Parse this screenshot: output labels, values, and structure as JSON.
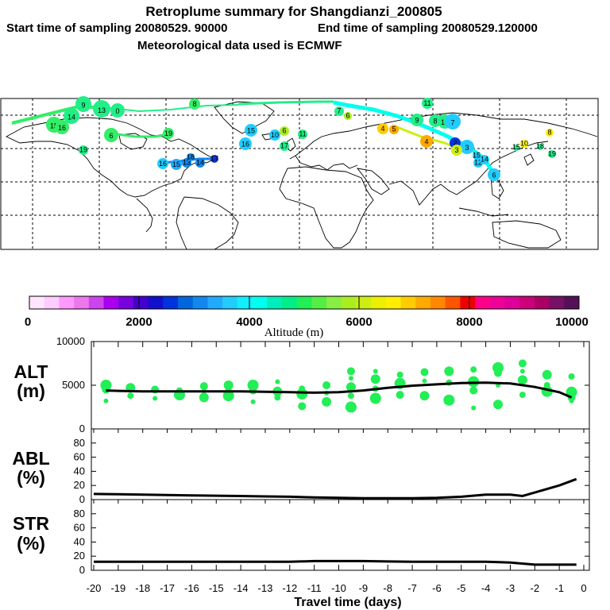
{
  "header": {
    "title": "Retroplume summary for Shangdianzi_200805",
    "line2_start": "Start time of sampling 20080529. 90000",
    "line2_end": "End time of sampling 20080529.120000",
    "line3": "Meteorological data used is ECMWF"
  },
  "colorbar": {
    "label": "Altitude (m)",
    "ticks": [
      "0",
      "2000",
      "4000",
      "6000",
      "8000",
      "10000"
    ],
    "colors": [
      "#ffe6ff",
      "#ffccff",
      "#ff99ff",
      "#ee77ee",
      "#cc44ee",
      "#aa00ee",
      "#7700dd",
      "#4400cc",
      "#1111cc",
      "#0033dd",
      "#0066dd",
      "#1188ee",
      "#22aaff",
      "#22ccff",
      "#11eeff",
      "#00ffee",
      "#00eebb",
      "#00ee88",
      "#22ee55",
      "#55ee44",
      "#88ee44",
      "#aaee22",
      "#ccee11",
      "#eeee00",
      "#ffee00",
      "#ffcc00",
      "#ffaa00",
      "#ff8800",
      "#ff5500",
      "#ee0000",
      "#ff0088",
      "#ee0099",
      "#dd0099",
      "#cc0077",
      "#aa0066",
      "#771166",
      "#551155"
    ]
  },
  "map": {
    "markers": [
      {
        "label": "9",
        "color": "#22ee88",
        "r": 10
      },
      {
        "label": "13",
        "color": "#22ee88",
        "r": 11
      },
      {
        "label": "0",
        "color": "#22ee88",
        "r": 9
      },
      {
        "label": "14",
        "color": "#22ee88",
        "r": 10
      },
      {
        "label": "15",
        "color": "#33ee66",
        "r": 10
      },
      {
        "label": "16",
        "color": "#33ee66",
        "r": 9
      },
      {
        "label": "8",
        "color": "#33ee66",
        "r": 7
      },
      {
        "label": "6",
        "color": "#33ee66",
        "r": 9
      },
      {
        "label": "19",
        "color": "#22ee88",
        "r": 6
      },
      {
        "label": "19",
        "color": "#33ee66",
        "r": 7
      },
      {
        "label": "16",
        "color": "#22ccff",
        "r": 7
      },
      {
        "label": "15",
        "color": "#22aaff",
        "r": 7
      },
      {
        "label": "13",
        "color": "#1188ee",
        "r": 6
      },
      {
        "label": "14",
        "color": "#1188ee",
        "r": 6
      },
      {
        "label": "17",
        "color": "#1133dd",
        "r": 5
      },
      {
        "label": "18",
        "color": "#1188ee",
        "r": 5
      },
      {
        "label": "15",
        "color": "#22ccff",
        "r": 8
      },
      {
        "label": "16",
        "color": "#22ccff",
        "r": 8
      },
      {
        "label": "10",
        "color": "#22ccff",
        "r": 7
      },
      {
        "label": "6",
        "color": "#aaee22",
        "r": 6
      },
      {
        "label": "17",
        "color": "#22ee88",
        "r": 6
      },
      {
        "label": "11",
        "color": "#22ee88",
        "r": 6
      },
      {
        "label": "4",
        "color": "#ffcc00",
        "r": 7
      },
      {
        "label": "5",
        "color": "#ffaa00",
        "r": 6
      },
      {
        "label": "7",
        "color": "#22ee88",
        "r": 6
      },
      {
        "label": "6",
        "color": "#aaee22",
        "r": 5
      },
      {
        "label": "11",
        "color": "#22ee88",
        "r": 7
      },
      {
        "label": "9",
        "color": "#22ee88",
        "r": 8
      },
      {
        "label": "8",
        "color": "#22ee88",
        "r": 8
      },
      {
        "label": "16",
        "color": "#22ee88",
        "r": 9
      },
      {
        "label": "7",
        "color": "#22ccff",
        "r": 10
      },
      {
        "label": "4",
        "color": "#ffaa00",
        "r": 8
      },
      {
        "label": "2",
        "color": "#0033dd",
        "r": 7
      },
      {
        "label": "3",
        "color": "#22ccff",
        "r": 9
      },
      {
        "label": "3",
        "color": "#ccee11",
        "r": 7
      },
      {
        "label": "6",
        "color": "#22ccff",
        "r": 8
      },
      {
        "label": "8",
        "color": "#ffee00",
        "r": 5
      },
      {
        "label": "10",
        "color": "#ffee00",
        "r": 5
      },
      {
        "label": "19",
        "color": "#22ee88",
        "r": 5
      },
      {
        "label": "15",
        "color": "#22ee88",
        "r": 4
      },
      {
        "label": "18",
        "color": "#22ee88",
        "r": 4
      },
      {
        "label": "15",
        "color": "#22ccff",
        "r": 5
      },
      {
        "label": "12",
        "color": "#22ccff",
        "r": 6
      },
      {
        "label": "14",
        "color": "#22ccff",
        "r": 6
      }
    ]
  },
  "chart_data": [
    {
      "panel": "ALT",
      "type": "line",
      "ylabel": "ALT\n(m)",
      "ylabel_line1": "ALT",
      "ylabel_line2": "(m)",
      "ylim": [
        0,
        10000
      ],
      "yticks": [
        "0",
        "5000",
        "10000"
      ],
      "x": [
        -19.5,
        -19,
        -18,
        -17,
        -16,
        -15,
        -14,
        -13,
        -12,
        -11,
        -10,
        -9,
        -8,
        -7,
        -6,
        -5,
        -4,
        -3,
        -2,
        -1,
        -0.5
      ],
      "line": [
        4400,
        4350,
        4300,
        4300,
        4300,
        4300,
        4300,
        4250,
        4200,
        4150,
        4200,
        4400,
        4700,
        4950,
        5100,
        5250,
        5300,
        5200,
        4800,
        4200,
        3600
      ],
      "scatter": [
        {
          "x": -19.5,
          "y": 3200
        },
        {
          "x": -19.5,
          "y": 4500
        },
        {
          "x": -19.5,
          "y": 5000
        },
        {
          "x": -18.5,
          "y": 3800
        },
        {
          "x": -18.5,
          "y": 4700
        },
        {
          "x": -17.5,
          "y": 3500
        },
        {
          "x": -17.5,
          "y": 4500
        },
        {
          "x": -16.5,
          "y": 3900
        },
        {
          "x": -16.5,
          "y": 4400
        },
        {
          "x": -15.5,
          "y": 3600
        },
        {
          "x": -15.5,
          "y": 4300
        },
        {
          "x": -15.5,
          "y": 4900
        },
        {
          "x": -14.5,
          "y": 3800
        },
        {
          "x": -14.5,
          "y": 4600
        },
        {
          "x": -14.5,
          "y": 5000
        },
        {
          "x": -13.5,
          "y": 3100
        },
        {
          "x": -13.5,
          "y": 4400
        },
        {
          "x": -13.5,
          "y": 5000
        },
        {
          "x": -12.5,
          "y": 3600
        },
        {
          "x": -12.5,
          "y": 4300
        },
        {
          "x": -12.5,
          "y": 5400
        },
        {
          "x": -11.5,
          "y": 2600
        },
        {
          "x": -11.5,
          "y": 4000
        },
        {
          "x": -11.5,
          "y": 4600
        },
        {
          "x": -10.5,
          "y": 3100
        },
        {
          "x": -10.5,
          "y": 4100
        },
        {
          "x": -10.5,
          "y": 5000
        },
        {
          "x": -9.5,
          "y": 2500
        },
        {
          "x": -9.5,
          "y": 3800
        },
        {
          "x": -9.5,
          "y": 4800
        },
        {
          "x": -9.5,
          "y": 5800
        },
        {
          "x": -9.5,
          "y": 6600
        },
        {
          "x": -8.5,
          "y": 3500
        },
        {
          "x": -8.5,
          "y": 4600
        },
        {
          "x": -8.5,
          "y": 5700
        },
        {
          "x": -8.5,
          "y": 6600
        },
        {
          "x": -7.5,
          "y": 3900
        },
        {
          "x": -7.5,
          "y": 5200
        },
        {
          "x": -7.5,
          "y": 6200
        },
        {
          "x": -6.5,
          "y": 3800
        },
        {
          "x": -6.5,
          "y": 5500
        },
        {
          "x": -6.5,
          "y": 6500
        },
        {
          "x": -5.5,
          "y": 3300
        },
        {
          "x": -5.5,
          "y": 5300
        },
        {
          "x": -5.5,
          "y": 6600
        },
        {
          "x": -4.5,
          "y": 2400
        },
        {
          "x": -4.5,
          "y": 4400
        },
        {
          "x": -4.5,
          "y": 5400
        },
        {
          "x": -4.5,
          "y": 6800
        },
        {
          "x": -3.5,
          "y": 2800
        },
        {
          "x": -3.5,
          "y": 5000
        },
        {
          "x": -3.5,
          "y": 6400
        },
        {
          "x": -3.5,
          "y": 7000
        },
        {
          "x": -2.5,
          "y": 3900
        },
        {
          "x": -2.5,
          "y": 5600
        },
        {
          "x": -2.5,
          "y": 6600
        },
        {
          "x": -2.5,
          "y": 7500
        },
        {
          "x": -1.5,
          "y": 4300
        },
        {
          "x": -1.5,
          "y": 5000
        },
        {
          "x": -1.5,
          "y": 6200
        },
        {
          "x": -0.5,
          "y": 3200
        },
        {
          "x": -0.5,
          "y": 3600
        },
        {
          "x": -0.5,
          "y": 4200
        },
        {
          "x": -0.5,
          "y": 6000
        }
      ]
    },
    {
      "panel": "ABL",
      "type": "line",
      "ylabel_line1": "ABL",
      "ylabel_line2": "(%)",
      "ylim": [
        0,
        100
      ],
      "yticks": [
        "0",
        "20",
        "40",
        "60",
        "80"
      ],
      "x": [
        -20,
        -19,
        -18,
        -17,
        -16,
        -15,
        -14,
        -13,
        -12,
        -11,
        -10,
        -9,
        -8,
        -7,
        -6,
        -5,
        -4,
        -3,
        -2.5,
        -2,
        -1,
        -0.3
      ],
      "values": [
        8,
        7.5,
        7,
        6.5,
        6,
        5.5,
        5,
        4.5,
        4,
        3,
        2.5,
        2,
        2,
        2,
        2.5,
        4,
        7,
        7,
        5,
        10,
        20,
        29
      ]
    },
    {
      "panel": "STR",
      "type": "line",
      "ylabel_line1": "STR",
      "ylabel_line2": "(%)",
      "ylim": [
        0,
        100
      ],
      "yticks": [
        "0",
        "20",
        "40",
        "60",
        "80"
      ],
      "xlabel": "Travel time (days)",
      "xticks": [
        "-20",
        "-19",
        "-18",
        "-17",
        "-16",
        "-15",
        "-14",
        "-13",
        "-12",
        "-11",
        "-10",
        "-9",
        "-8",
        "-7",
        "-6",
        "-5",
        "-4",
        "-3",
        "-2",
        "-1",
        "0"
      ],
      "x": [
        -20,
        -19,
        -18,
        -17,
        -16,
        -15,
        -14,
        -13,
        -12,
        -11,
        -10,
        -9,
        -8,
        -7,
        -6,
        -5,
        -4,
        -3,
        -2,
        -1,
        -0.3
      ],
      "values": [
        12,
        12,
        12,
        12,
        12,
        12,
        12,
        12,
        12,
        13,
        13,
        13,
        12.5,
        12,
        12,
        12,
        12,
        11,
        8,
        8,
        8
      ]
    }
  ]
}
